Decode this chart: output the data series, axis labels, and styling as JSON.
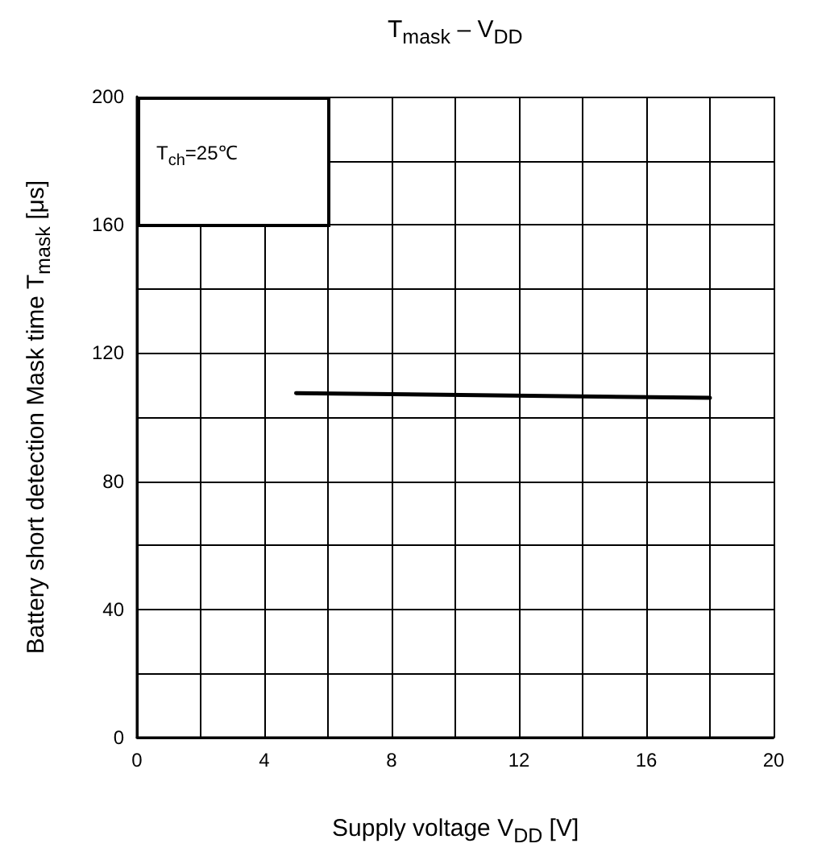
{
  "chart_data": {
    "type": "line",
    "title": "T$_{mask}$ – V$_{DD}$",
    "xlabel": "Supply voltage V$_{DD}$ [V]",
    "ylabel": "Battery short detection Mask time T$_{mask}$ [μs]",
    "annotations": [
      "T$_{ch}$=25℃"
    ],
    "x": [
      5,
      18
    ],
    "series": [
      {
        "color": "#000000",
        "values": [
          107.5,
          106
        ]
      }
    ],
    "xlim": [
      0,
      20
    ],
    "xticks": [
      0,
      {
        "value": 2,
        "label": null
      },
      4,
      {
        "value": 6,
        "label": null
      },
      8,
      {
        "value": 10,
        "label": null
      },
      12,
      {
        "value": 14,
        "label": null
      },
      16,
      {
        "value": 18,
        "label": null
      },
      20
    ],
    "ylim": [
      0,
      200
    ],
    "yticks": [
      0,
      {
        "value": 20,
        "label": null
      },
      40,
      {
        "value": 60,
        "label": null
      },
      80,
      {
        "value": 100,
        "label": null
      },
      120,
      {
        "value": 140,
        "label": null
      },
      160,
      {
        "value": 180,
        "label": null
      },
      200
    ],
    "grid": true,
    "marker": "none",
    "line_style": "solid"
  }
}
